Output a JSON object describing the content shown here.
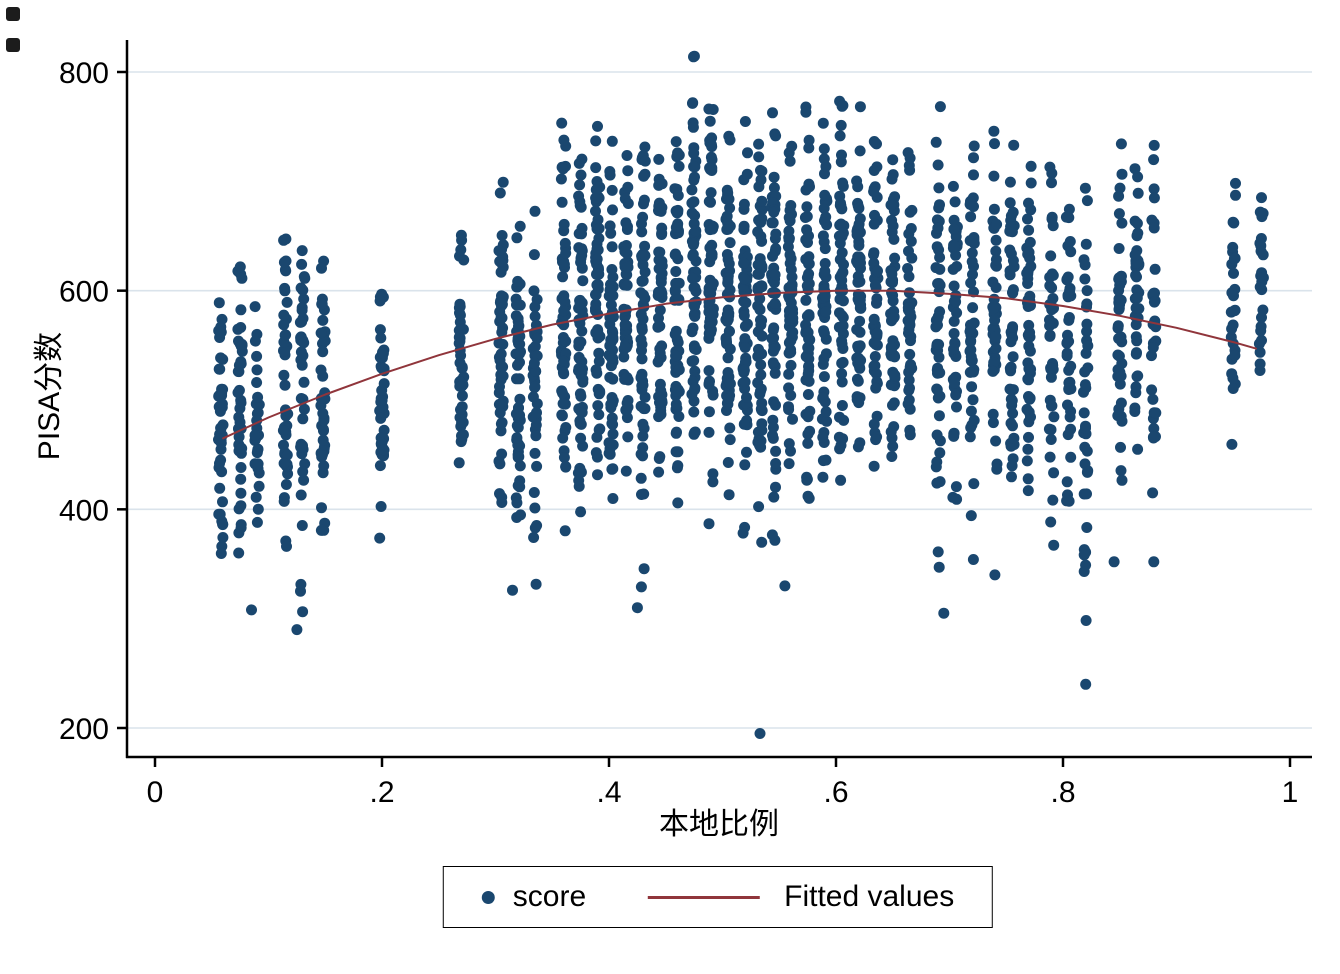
{
  "window": {
    "artifact_color": "#1c1c1c"
  },
  "chart_data": {
    "type": "scatter",
    "title": "",
    "xlabel": "本地比例",
    "ylabel": "PISA分数",
    "xlim": [
      -0.025,
      1.02
    ],
    "ylim": [
      173,
      830
    ],
    "xticks": [
      0,
      0.2,
      0.4,
      0.6,
      0.8,
      1
    ],
    "xtick_labels": [
      "0",
      ".2",
      ".4",
      ".6",
      ".8",
      "1"
    ],
    "yticks": [
      200,
      400,
      600,
      800
    ],
    "ytick_labels": [
      "200",
      "400",
      "600",
      "800"
    ],
    "grid": "horizontal",
    "background": "#ffffff",
    "grid_color": "#dae3eb",
    "axis_color": "#000000",
    "legend": {
      "position": "bottom-center",
      "border": true,
      "entries": [
        {
          "label": "score",
          "type": "marker",
          "color": "#1a476f"
        },
        {
          "label": "Fitted values",
          "type": "line",
          "color": "#90353b"
        }
      ]
    },
    "series": [
      {
        "name": "score",
        "type": "scatter",
        "color": "#1a476f",
        "marker_radius": 5.5,
        "clusters_format": "[x, n_points, y_mean, y_sd, y_min, y_max]",
        "clusters": [
          [
            0.058,
            45,
            490,
            70,
            350,
            620
          ],
          [
            0.075,
            45,
            495,
            70,
            355,
            625
          ],
          [
            0.09,
            30,
            480,
            65,
            375,
            610
          ],
          [
            0.115,
            45,
            520,
            85,
            350,
            690
          ],
          [
            0.13,
            40,
            500,
            80,
            290,
            665
          ],
          [
            0.148,
            40,
            495,
            75,
            345,
            630
          ],
          [
            0.2,
            45,
            500,
            70,
            355,
            630
          ],
          [
            0.27,
            45,
            530,
            70,
            390,
            665
          ],
          [
            0.305,
            50,
            545,
            80,
            370,
            720
          ],
          [
            0.32,
            55,
            535,
            85,
            325,
            700
          ],
          [
            0.335,
            40,
            520,
            80,
            310,
            680
          ],
          [
            0.36,
            60,
            560,
            90,
            350,
            755
          ],
          [
            0.375,
            65,
            570,
            90,
            360,
            760
          ],
          [
            0.39,
            60,
            590,
            85,
            400,
            780
          ],
          [
            0.402,
            60,
            570,
            90,
            310,
            745
          ],
          [
            0.415,
            55,
            585,
            75,
            430,
            740
          ],
          [
            0.43,
            60,
            575,
            90,
            310,
            735
          ],
          [
            0.445,
            55,
            580,
            75,
            420,
            730
          ],
          [
            0.46,
            60,
            585,
            80,
            400,
            750
          ],
          [
            0.475,
            65,
            610,
            85,
            430,
            820
          ],
          [
            0.49,
            65,
            605,
            90,
            380,
            805
          ],
          [
            0.505,
            60,
            595,
            85,
            390,
            770
          ],
          [
            0.52,
            60,
            580,
            90,
            340,
            760
          ],
          [
            0.533,
            60,
            585,
            95,
            330,
            775
          ],
          [
            0.545,
            60,
            590,
            90,
            330,
            780
          ],
          [
            0.56,
            55,
            585,
            80,
            380,
            745
          ],
          [
            0.575,
            60,
            595,
            90,
            330,
            790
          ],
          [
            0.59,
            55,
            590,
            85,
            380,
            765
          ],
          [
            0.605,
            55,
            600,
            85,
            390,
            780
          ],
          [
            0.62,
            55,
            605,
            85,
            400,
            790
          ],
          [
            0.635,
            50,
            600,
            80,
            420,
            770
          ],
          [
            0.65,
            50,
            590,
            80,
            390,
            745
          ],
          [
            0.665,
            45,
            580,
            80,
            380,
            735
          ],
          [
            0.69,
            50,
            560,
            95,
            305,
            770
          ],
          [
            0.705,
            45,
            565,
            80,
            375,
            720
          ],
          [
            0.72,
            45,
            560,
            95,
            305,
            745
          ],
          [
            0.74,
            45,
            575,
            80,
            380,
            750
          ],
          [
            0.755,
            45,
            560,
            85,
            340,
            735
          ],
          [
            0.77,
            50,
            580,
            80,
            400,
            745
          ],
          [
            0.79,
            40,
            550,
            85,
            340,
            720
          ],
          [
            0.805,
            40,
            560,
            75,
            405,
            710
          ],
          [
            0.82,
            38,
            545,
            90,
            240,
            700
          ],
          [
            0.85,
            42,
            560,
            90,
            350,
            740
          ],
          [
            0.865,
            38,
            570,
            75,
            420,
            725
          ],
          [
            0.88,
            32,
            560,
            90,
            350,
            745
          ],
          [
            0.95,
            28,
            580,
            75,
            455,
            730
          ],
          [
            0.975,
            24,
            600,
            50,
            525,
            695
          ]
        ],
        "extra_points": [
          [
            0.533,
            195
          ],
          [
            0.82,
            240
          ],
          [
            0.125,
            290
          ],
          [
            0.085,
            308
          ],
          [
            0.425,
            310
          ],
          [
            0.695,
            305
          ],
          [
            0.315,
            326
          ],
          [
            0.555,
            330
          ],
          [
            0.74,
            340
          ],
          [
            0.88,
            352
          ],
          [
            0.845,
            352
          ]
        ]
      },
      {
        "name": "Fitted values",
        "type": "line",
        "color": "#90353b",
        "width": 2,
        "points": [
          [
            0.06,
            465
          ],
          [
            0.1,
            484
          ],
          [
            0.15,
            505
          ],
          [
            0.2,
            524
          ],
          [
            0.25,
            541
          ],
          [
            0.3,
            556
          ],
          [
            0.35,
            569
          ],
          [
            0.4,
            579
          ],
          [
            0.45,
            588
          ],
          [
            0.5,
            594
          ],
          [
            0.55,
            598
          ],
          [
            0.6,
            600
          ],
          [
            0.62,
            600
          ],
          [
            0.65,
            600
          ],
          [
            0.7,
            597
          ],
          [
            0.75,
            593
          ],
          [
            0.8,
            586
          ],
          [
            0.85,
            577
          ],
          [
            0.9,
            566
          ],
          [
            0.95,
            553
          ],
          [
            0.97,
            547
          ]
        ]
      }
    ]
  }
}
